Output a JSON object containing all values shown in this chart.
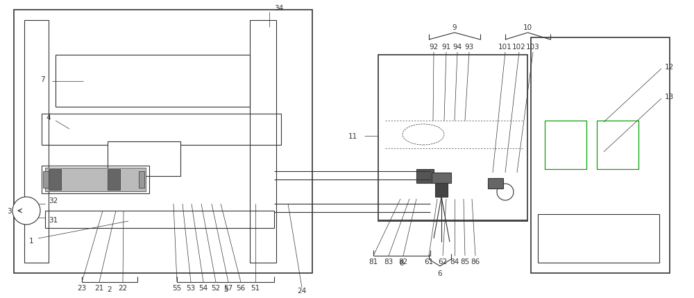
{
  "fig_width": 10.0,
  "fig_height": 4.31,
  "bg_color": "#ffffff",
  "lc": "#333333",
  "lw": 0.8,
  "tlw": 0.5,
  "thk": 1.2
}
